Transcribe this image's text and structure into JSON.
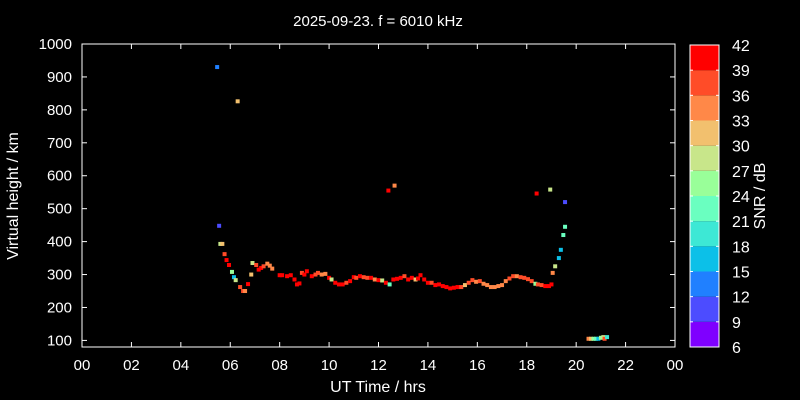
{
  "chart_data": {
    "type": "scatter",
    "title": "2025-09-23. f = 6010 kHz",
    "xlabel": "UT Time / hrs",
    "ylabel": "Virtual height / km",
    "xlim": [
      0,
      24
    ],
    "ylim": [
      80,
      1000
    ],
    "xticks": [
      "00",
      "02",
      "04",
      "06",
      "08",
      "10",
      "12",
      "14",
      "16",
      "18",
      "20",
      "22",
      "00"
    ],
    "yticks": [
      100,
      200,
      300,
      400,
      500,
      600,
      700,
      800,
      900,
      1000
    ],
    "grid": false,
    "colorbar": {
      "label": "SNR / dB",
      "ticks": [
        6,
        9,
        12,
        15,
        18,
        21,
        24,
        27,
        30,
        33,
        36,
        39,
        42
      ],
      "colors": [
        "#7f00ff",
        "#4c4cff",
        "#2080ff",
        "#0cc0e8",
        "#3de8d5",
        "#6affc0",
        "#99ff99",
        "#c8e68a",
        "#f2c06e",
        "#ff8848",
        "#ff4c28",
        "#ff0000"
      ]
    },
    "points": [
      [
        5.47,
        930,
        12
      ],
      [
        6.3,
        826,
        31
      ],
      [
        5.55,
        448,
        10
      ],
      [
        12.4,
        555,
        40
      ],
      [
        12.65,
        570,
        35
      ],
      [
        18.4,
        546,
        40
      ],
      [
        18.95,
        558,
        28
      ],
      [
        19.55,
        520,
        10
      ],
      [
        5.6,
        393,
        29
      ],
      [
        5.68,
        393,
        31
      ],
      [
        5.77,
        362,
        37
      ],
      [
        5.85,
        344,
        40
      ],
      [
        5.95,
        329,
        40
      ],
      [
        6.07,
        308,
        26
      ],
      [
        6.15,
        292,
        16
      ],
      [
        6.22,
        283,
        28
      ],
      [
        6.4,
        262,
        36
      ],
      [
        6.52,
        250,
        37
      ],
      [
        6.6,
        250,
        34
      ],
      [
        6.72,
        271,
        40
      ],
      [
        6.85,
        300,
        31
      ],
      [
        6.9,
        335,
        28
      ],
      [
        7.05,
        329,
        36
      ],
      [
        7.15,
        315,
        40
      ],
      [
        7.25,
        320,
        40
      ],
      [
        7.35,
        325,
        37
      ],
      [
        7.5,
        333,
        33
      ],
      [
        7.6,
        327,
        35
      ],
      [
        7.7,
        318,
        33
      ],
      [
        8.0,
        298,
        40
      ],
      [
        8.1,
        298,
        40
      ],
      [
        8.3,
        295,
        39
      ],
      [
        8.45,
        298,
        40
      ],
      [
        8.6,
        285,
        40
      ],
      [
        8.7,
        270,
        40
      ],
      [
        8.8,
        273,
        40
      ],
      [
        8.9,
        305,
        38
      ],
      [
        9.0,
        300,
        40
      ],
      [
        9.1,
        310,
        40
      ],
      [
        9.3,
        295,
        40
      ],
      [
        9.45,
        300,
        38
      ],
      [
        9.55,
        305,
        38
      ],
      [
        9.7,
        300,
        34
      ],
      [
        9.85,
        302,
        35
      ],
      [
        10.0,
        290,
        40
      ],
      [
        10.1,
        285,
        28
      ],
      [
        10.25,
        275,
        40
      ],
      [
        10.4,
        270,
        40
      ],
      [
        10.55,
        270,
        40
      ],
      [
        10.7,
        275,
        38
      ],
      [
        10.85,
        280,
        40
      ],
      [
        11.0,
        292,
        40
      ],
      [
        11.1,
        290,
        36
      ],
      [
        11.25,
        295,
        40
      ],
      [
        11.4,
        292,
        36
      ],
      [
        11.55,
        290,
        38
      ],
      [
        11.7,
        290,
        40
      ],
      [
        11.85,
        285,
        33
      ],
      [
        12.0,
        283,
        40
      ],
      [
        12.15,
        282,
        27
      ],
      [
        12.3,
        275,
        40
      ],
      [
        12.45,
        270,
        21
      ],
      [
        12.6,
        285,
        39
      ],
      [
        12.75,
        287,
        40
      ],
      [
        12.9,
        290,
        39
      ],
      [
        13.05,
        295,
        36
      ],
      [
        13.2,
        285,
        40
      ],
      [
        13.35,
        290,
        40
      ],
      [
        13.5,
        285,
        32
      ],
      [
        13.6,
        288,
        40
      ],
      [
        13.7,
        298,
        40
      ],
      [
        13.85,
        285,
        40
      ],
      [
        14.0,
        275,
        40
      ],
      [
        14.15,
        275,
        38
      ],
      [
        14.3,
        268,
        40
      ],
      [
        14.45,
        270,
        40
      ],
      [
        14.6,
        265,
        39
      ],
      [
        14.75,
        262,
        40
      ],
      [
        14.9,
        258,
        40
      ],
      [
        15.05,
        260,
        39
      ],
      [
        15.2,
        262,
        40
      ],
      [
        15.35,
        262,
        36
      ],
      [
        15.5,
        268,
        30
      ],
      [
        15.65,
        275,
        36
      ],
      [
        15.8,
        283,
        36
      ],
      [
        15.95,
        278,
        34
      ],
      [
        16.1,
        280,
        36
      ],
      [
        16.25,
        272,
        34
      ],
      [
        16.4,
        268,
        34
      ],
      [
        16.55,
        262,
        35
      ],
      [
        16.7,
        262,
        34
      ],
      [
        16.85,
        265,
        35
      ],
      [
        17.0,
        268,
        34
      ],
      [
        17.15,
        280,
        35
      ],
      [
        17.3,
        288,
        38
      ],
      [
        17.45,
        295,
        36
      ],
      [
        17.6,
        295,
        34
      ],
      [
        17.75,
        292,
        36
      ],
      [
        17.9,
        290,
        36
      ],
      [
        18.05,
        286,
        36
      ],
      [
        18.2,
        280,
        37
      ],
      [
        18.35,
        272,
        26
      ],
      [
        18.45,
        270,
        36
      ],
      [
        18.6,
        268,
        36
      ],
      [
        18.75,
        265,
        40
      ],
      [
        18.9,
        265,
        40
      ],
      [
        19.0,
        270,
        40
      ],
      [
        19.05,
        305,
        35
      ],
      [
        19.15,
        325,
        28
      ],
      [
        19.3,
        350,
        16
      ],
      [
        19.38,
        375,
        16
      ],
      [
        19.48,
        420,
        22
      ],
      [
        19.55,
        445,
        22
      ],
      [
        20.5,
        105,
        33
      ],
      [
        20.6,
        105,
        31
      ],
      [
        20.7,
        105,
        25
      ],
      [
        20.8,
        105,
        22
      ],
      [
        20.9,
        105,
        16
      ],
      [
        21.0,
        108,
        24
      ],
      [
        21.1,
        110,
        28
      ],
      [
        21.15,
        105,
        36
      ],
      [
        21.25,
        110,
        18
      ]
    ]
  }
}
